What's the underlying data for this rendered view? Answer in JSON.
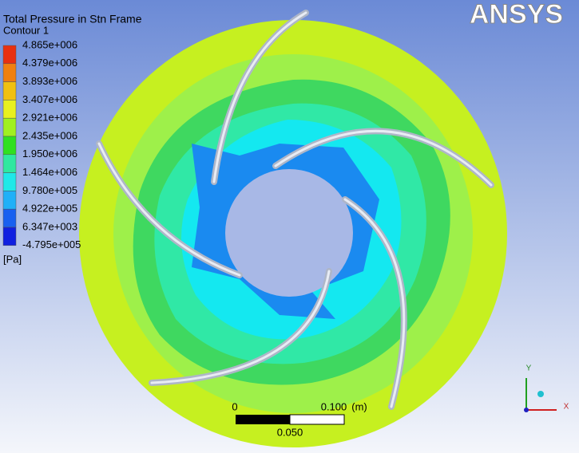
{
  "header": {
    "title": "Total Pressure in Stn Frame",
    "subtitle": "Contour 1",
    "logo": "ANSYS"
  },
  "legend": {
    "labels": [
      "4.865e+006",
      "4.379e+006",
      "3.893e+006",
      "3.407e+006",
      "2.921e+006",
      "2.435e+006",
      "1.950e+006",
      "1.464e+006",
      "9.780e+005",
      "4.922e+005",
      "6.347e+003",
      "-4.795e+005"
    ],
    "unit": "[Pa]"
  },
  "scale_bar": {
    "start": "0",
    "end": "0.100",
    "unit": "(m)",
    "middle": "0.050"
  },
  "axes": {
    "y": "Y",
    "x": "X"
  }
}
